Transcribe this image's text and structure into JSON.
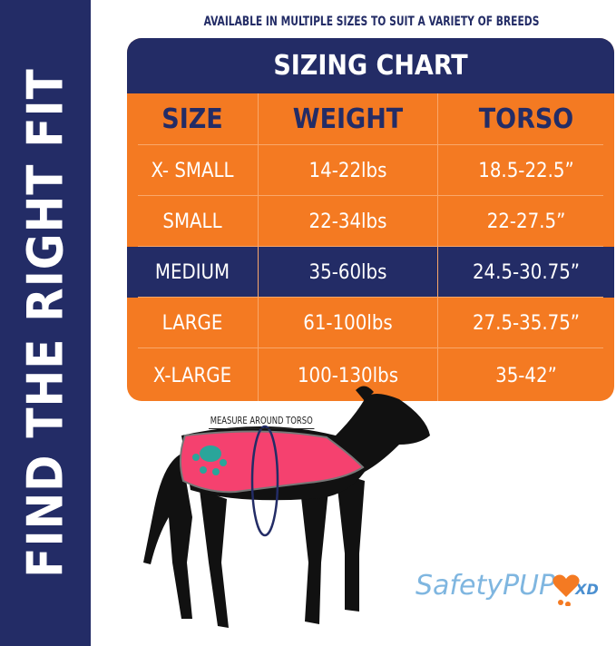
{
  "side_title": "FIND THE RIGHT FIT",
  "subtitle": "AVAILABLE IN MULTIPLE SIZES TO SUIT A VARIETY OF BREEDS",
  "table": {
    "title": "SIZING CHART",
    "headers": [
      "SIZE",
      "WEIGHT",
      "TORSO"
    ],
    "rows": [
      [
        "X- SMALL",
        "14-22lbs",
        "18.5-22.5”"
      ],
      [
        "SMALL",
        "22-34lbs",
        "22-27.5”"
      ],
      [
        "MEDIUM",
        "35-60lbs",
        "24.5-30.75”"
      ],
      [
        "LARGE",
        "61-100lbs",
        "27.5-35.75”"
      ],
      [
        "X-LARGE",
        "100-130lbs",
        "35-42”"
      ]
    ],
    "highlighted_row": "MEDIUM"
  },
  "measure_label": "MEASURE AROUND TORSO",
  "logo": {
    "text": "SafetyPUP",
    "suffix": "XD"
  },
  "colors": {
    "navy": "#232c66",
    "orange": "#f47a22",
    "vest_pink": "#f5416f",
    "paw_teal": "#2aa59a",
    "logo_blue": "#7fb6e0"
  }
}
